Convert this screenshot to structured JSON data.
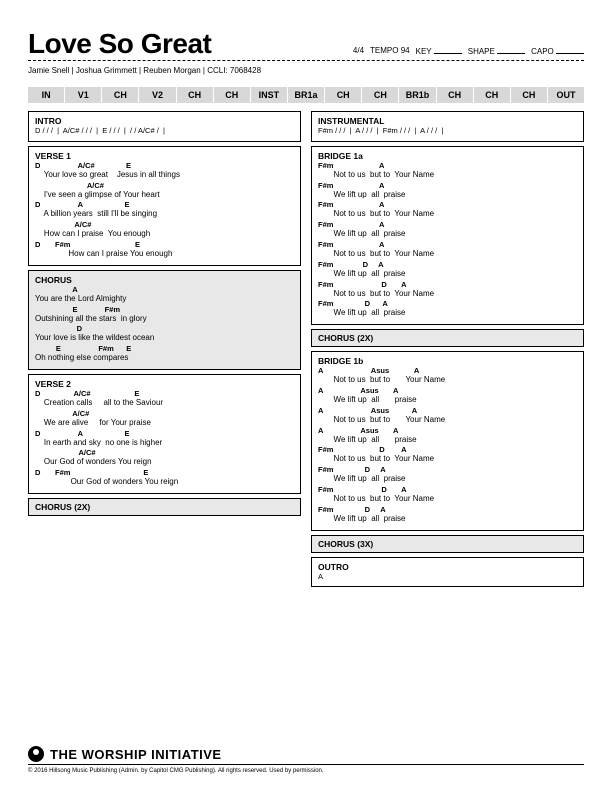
{
  "header": {
    "title": "Love So Great",
    "time_sig": "4/4",
    "tempo_label": "TEMPO",
    "tempo": "94",
    "key_label": "KEY",
    "shape_label": "SHAPE",
    "capo_label": "CAPO",
    "credits": "Jamie Snell | Joshua Grimmett | Reuben Morgan | CCLI: 7068428"
  },
  "roadmap": [
    "IN",
    "V1",
    "CH",
    "V2",
    "CH",
    "CH",
    "INST",
    "BR1a",
    "CH",
    "CH",
    "BR1b",
    "CH",
    "CH",
    "CH",
    "OUT"
  ],
  "sections": {
    "intro": {
      "title": "INTRO",
      "chords": "D / / /  |  A/C# / / /  |  E / / /  |  / / A/C# /  |"
    },
    "verse1": {
      "title": "VERSE 1",
      "lines": [
        {
          "c": "D                  A/C#               E",
          "l": "    Your love so great    Jesus in all things"
        },
        {
          "c": "                         A/C#",
          "l": "    I've seen a glimpse of Your heart"
        },
        {
          "c": "D                  A                    E",
          "l": "    A billion years  still I'll be singing"
        },
        {
          "c": "                   A/C#",
          "l": "    How can I praise  You enough"
        },
        {
          "c": "D       F#m                               E",
          "l": "               How can I praise You enough"
        }
      ]
    },
    "chorus": {
      "title": "CHORUS",
      "lines": [
        {
          "c": "                  A",
          "l": "You are the Lord Almighty"
        },
        {
          "c": "                  E             F#m",
          "l": "Outshining all the stars  in glory"
        },
        {
          "c": "                    D",
          "l": "Your love is like the wildest ocean"
        },
        {
          "c": "          E                  F#m      E",
          "l": "Oh nothing else compares"
        }
      ]
    },
    "verse2": {
      "title": "VERSE 2",
      "lines": [
        {
          "c": "D                A/C#                     E",
          "l": "    Creation calls     all to the Saviour"
        },
        {
          "c": "                  A/C#",
          "l": "    We are alive     for Your praise"
        },
        {
          "c": "D                  A                    E",
          "l": "    In earth and sky  no one is higher"
        },
        {
          "c": "                     A/C#",
          "l": "    Our God of wonders You reign"
        },
        {
          "c": "D       F#m                                   E",
          "l": "                Our God of wonders You reign"
        }
      ]
    },
    "chorus2x_a": {
      "title": "CHORUS (2X)"
    },
    "instrumental": {
      "title": "INSTRUMENTAL",
      "chords": "F#m / / /  |  A / / /  |  F#m / / /  |  A / / /  |"
    },
    "bridge1a": {
      "title": "BRIDGE 1a",
      "lines": [
        {
          "c": "F#m                      A",
          "l": "       Not to us  but to  Your Name"
        },
        {
          "c": "F#m                      A",
          "l": "       We lift up  all  praise"
        },
        {
          "c": "F#m                      A",
          "l": "       Not to us  but to  Your Name"
        },
        {
          "c": "F#m                      A",
          "l": "       We lift up  all  praise"
        },
        {
          "c": "F#m                      A",
          "l": "       Not to us  but to  Your Name"
        },
        {
          "c": "F#m              D     A",
          "l": "       We lift up  all  praise"
        },
        {
          "c": "F#m                       D       A",
          "l": "       Not to us  but to  Your Name"
        },
        {
          "c": "F#m               D      A",
          "l": "       We lift up  all  praise"
        }
      ]
    },
    "chorus2x_b": {
      "title": "CHORUS (2X)"
    },
    "bridge1b": {
      "title": "BRIDGE 1b",
      "lines": [
        {
          "c": "A                       Asus            A",
          "l": "       Not to us  but to       Your Name"
        },
        {
          "c": "A                  Asus       A",
          "l": "       We lift up  all       praise"
        },
        {
          "c": "A                       Asus           A",
          "l": "       Not to us  but to       Your Name"
        },
        {
          "c": "A                  Asus       A",
          "l": "       We lift up  all       praise"
        },
        {
          "c": "F#m                      D        A",
          "l": "       Not to us  but to  Your Name"
        },
        {
          "c": "F#m               D     A",
          "l": "       We lift up  all  praise"
        },
        {
          "c": "F#m                       D       A",
          "l": "       Not to us  but to  Your Name"
        },
        {
          "c": "F#m               D     A",
          "l": "       We lift up  all  praise"
        }
      ]
    },
    "chorus3x": {
      "title": "CHORUS (3X)"
    },
    "outro": {
      "title": "OUTRO",
      "chords": "A"
    }
  },
  "footer": {
    "brand": "THE WORSHIP INITIATIVE",
    "copyright": "© 2016 Hillsong Music Publishing (Admin. by Capitol CMG Publishing). All rights reserved. Used by permission."
  },
  "colors": {
    "bg": "#ffffff",
    "text": "#000000",
    "shade": "#e8e8e8",
    "roadmap": "#d8d8d8"
  }
}
